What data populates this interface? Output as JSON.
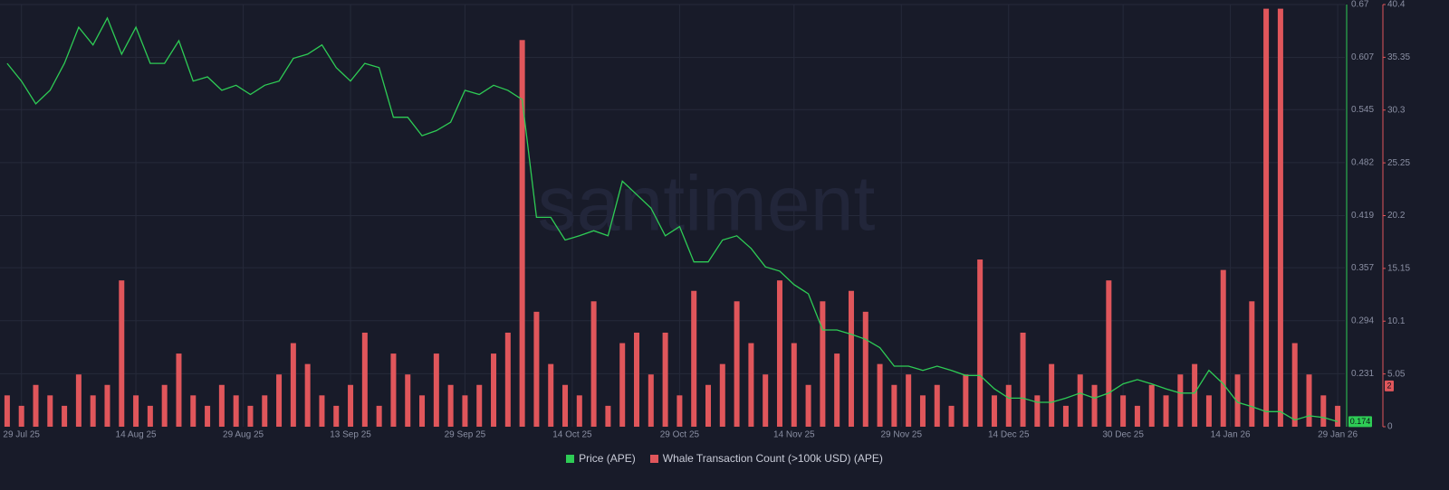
{
  "chart_data": {
    "type": "line",
    "watermark": "santiment",
    "x": [
      "2025-07-27",
      "2025-07-29",
      "2025-07-31",
      "2025-08-02",
      "2025-08-04",
      "2025-08-06",
      "2025-08-08",
      "2025-08-10",
      "2025-08-12",
      "2025-08-14",
      "2025-08-16",
      "2025-08-18",
      "2025-08-20",
      "2025-08-22",
      "2025-08-24",
      "2025-08-26",
      "2025-08-28",
      "2025-08-30",
      "2025-09-01",
      "2025-09-03",
      "2025-09-05",
      "2025-09-07",
      "2025-09-09",
      "2025-09-11",
      "2025-09-13",
      "2025-09-15",
      "2025-09-17",
      "2025-09-19",
      "2025-09-21",
      "2025-09-23",
      "2025-09-25",
      "2025-09-27",
      "2025-09-29",
      "2025-10-01",
      "2025-10-03",
      "2025-10-05",
      "2025-10-07",
      "2025-10-09",
      "2025-10-11",
      "2025-10-13",
      "2025-10-15",
      "2025-10-17",
      "2025-10-19",
      "2025-10-21",
      "2025-10-23",
      "2025-10-25",
      "2025-10-27",
      "2025-10-29",
      "2025-10-31",
      "2025-11-02",
      "2025-11-04",
      "2025-11-06",
      "2025-11-08",
      "2025-11-10",
      "2025-11-12",
      "2025-11-14",
      "2025-11-16",
      "2025-11-18",
      "2025-11-20",
      "2025-11-22",
      "2025-11-24",
      "2025-11-26",
      "2025-11-28",
      "2025-11-30",
      "2025-12-02",
      "2025-12-04",
      "2025-12-06",
      "2025-12-08",
      "2025-12-10",
      "2025-12-12",
      "2025-12-14",
      "2025-12-16",
      "2025-12-18",
      "2025-12-20",
      "2025-12-22",
      "2025-12-24",
      "2025-12-26",
      "2025-12-28",
      "2025-12-30",
      "2026-01-01",
      "2026-01-03",
      "2026-01-05",
      "2026-01-07",
      "2026-01-09",
      "2026-01-11",
      "2026-01-13",
      "2026-01-15",
      "2026-01-17",
      "2026-01-19",
      "2026-01-21",
      "2026-01-23",
      "2026-01-25",
      "2026-01-27",
      "2026-01-29"
    ],
    "xlim": [
      "2025-07-26",
      "2026-01-30"
    ],
    "xticks": [
      {
        "value": "2025-07-29",
        "label": "29 Jul 25"
      },
      {
        "value": "2025-08-14",
        "label": "14 Aug 25"
      },
      {
        "value": "2025-08-29",
        "label": "29 Aug 25"
      },
      {
        "value": "2025-09-13",
        "label": "13 Sep 25"
      },
      {
        "value": "2025-09-29",
        "label": "29 Sep 25"
      },
      {
        "value": "2025-10-14",
        "label": "14 Oct 25"
      },
      {
        "value": "2025-10-29",
        "label": "29 Oct 25"
      },
      {
        "value": "2025-11-14",
        "label": "14 Nov 25"
      },
      {
        "value": "2025-11-29",
        "label": "29 Nov 25"
      },
      {
        "value": "2025-12-14",
        "label": "14 Dec 25"
      },
      {
        "value": "2025-12-30",
        "label": "30 Dec 25"
      },
      {
        "value": "2026-01-14",
        "label": "14 Jan 26"
      },
      {
        "value": "2026-01-29",
        "label": "29 Jan 26"
      }
    ],
    "ylim": [
      0.168,
      0.67
    ],
    "yticks": [
      0.231,
      0.294,
      0.357,
      0.419,
      0.482,
      0.545,
      0.607,
      0.67
    ],
    "y2lim": [
      0,
      40.4
    ],
    "y2ticks": [
      0,
      5.05,
      10.1,
      15.15,
      20.2,
      25.25,
      30.3,
      35.35,
      40.4
    ],
    "grid": true,
    "series": [
      {
        "name": "Price (APE)",
        "color": "#2ecc55",
        "type": "line",
        "axis": "y",
        "values": [
          0.6,
          0.579,
          0.552,
          0.568,
          0.6,
          0.643,
          0.622,
          0.654,
          0.611,
          0.643,
          0.6,
          0.6,
          0.627,
          0.579,
          0.584,
          0.568,
          0.574,
          0.563,
          0.574,
          0.579,
          0.606,
          0.611,
          0.622,
          0.595,
          0.579,
          0.6,
          0.595,
          0.536,
          0.536,
          0.514,
          0.52,
          0.53,
          0.568,
          0.563,
          0.574,
          0.568,
          0.557,
          0.417,
          0.417,
          0.39,
          0.395,
          0.401,
          0.395,
          0.46,
          0.444,
          0.428,
          0.395,
          0.406,
          0.364,
          0.364,
          0.39,
          0.395,
          0.38,
          0.358,
          0.353,
          0.337,
          0.326,
          0.283,
          0.283,
          0.278,
          0.272,
          0.262,
          0.24,
          0.24,
          0.235,
          0.24,
          0.235,
          0.229,
          0.229,
          0.213,
          0.202,
          0.202,
          0.197,
          0.197,
          0.202,
          0.208,
          0.202,
          0.208,
          0.219,
          0.224,
          0.219,
          0.213,
          0.208,
          0.208,
          0.235,
          0.219,
          0.197,
          0.192,
          0.186,
          0.186,
          0.176,
          0.181,
          0.179,
          0.174
        ]
      },
      {
        "name": "Whale Transaction Count (>100k USD) (APE)",
        "color": "#e0565b",
        "type": "bar",
        "axis": "y2",
        "values": [
          3,
          2,
          4,
          3,
          2,
          5,
          3,
          4,
          14,
          3,
          2,
          4,
          7,
          3,
          2,
          4,
          3,
          2,
          3,
          5,
          8,
          6,
          3,
          2,
          4,
          9,
          2,
          7,
          5,
          3,
          7,
          4,
          3,
          4,
          7,
          9,
          37,
          11,
          6,
          4,
          3,
          12,
          2,
          8,
          9,
          5,
          9,
          3,
          13,
          4,
          6,
          12,
          8,
          5,
          14,
          8,
          4,
          12,
          7,
          13,
          11,
          6,
          4,
          5,
          3,
          4,
          2,
          5,
          16,
          3,
          4,
          9,
          3,
          6,
          2,
          5,
          4,
          14,
          3,
          2,
          4,
          3,
          5,
          6,
          3,
          15,
          5,
          12,
          40,
          40,
          8,
          5,
          3,
          2
        ]
      }
    ]
  }
}
